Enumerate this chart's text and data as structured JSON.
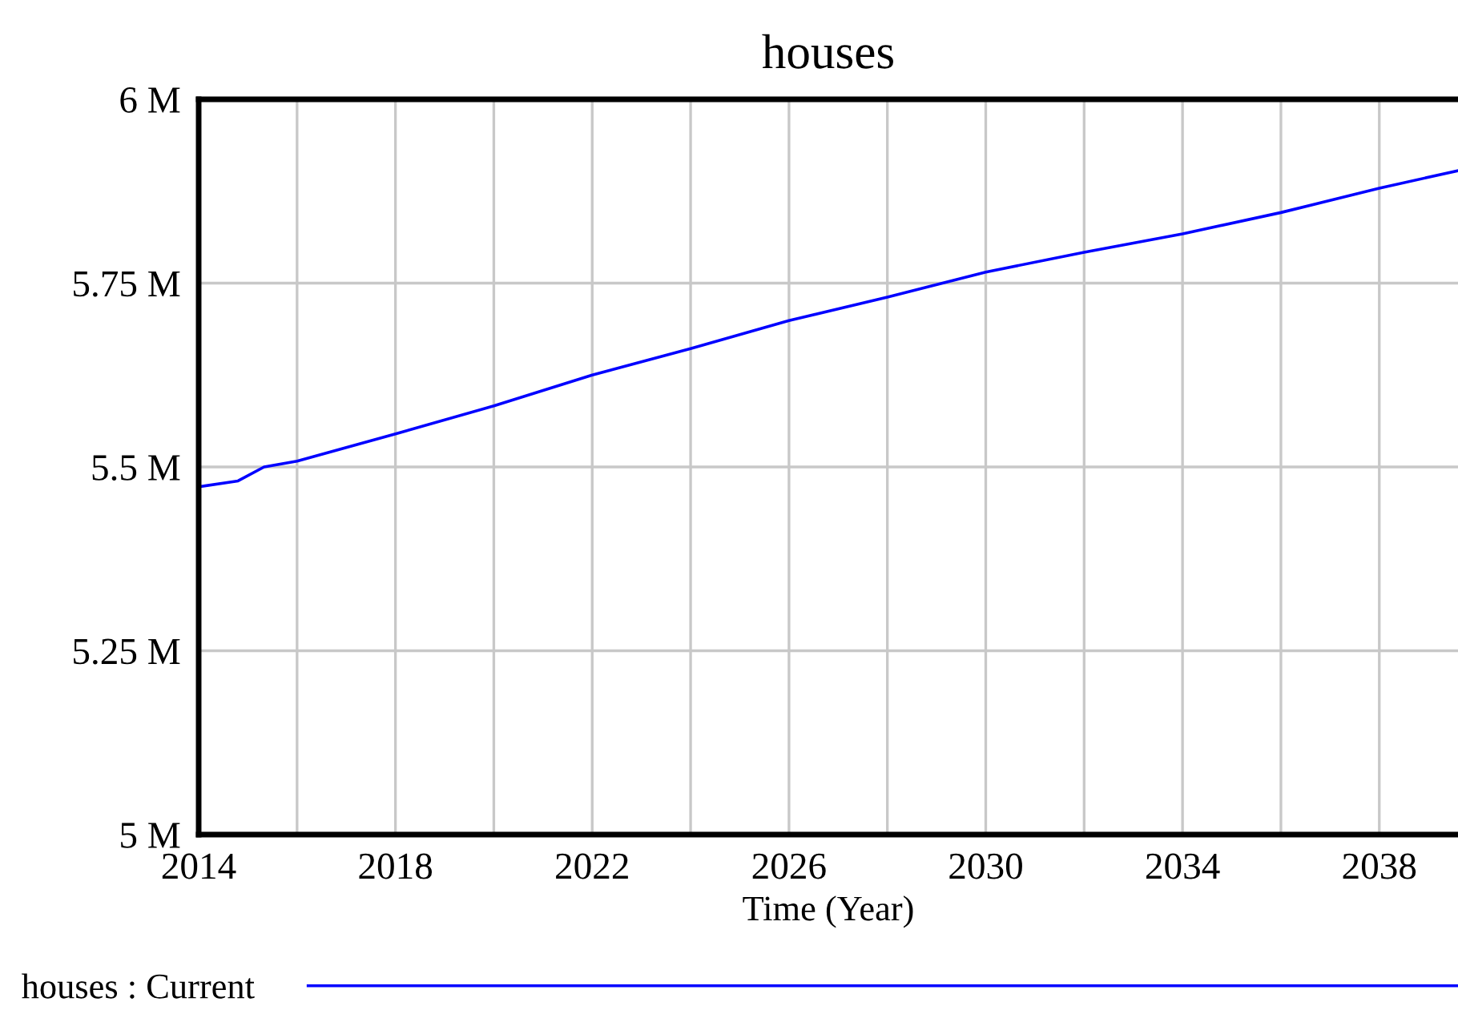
{
  "chart_data": {
    "type": "line",
    "title": "houses",
    "xlabel": "Time (Year)",
    "x": [
      2014,
      2014.8,
      2015.33,
      2016,
      2018,
      2020,
      2022,
      2024,
      2026,
      2028,
      2030,
      2032,
      2034,
      2036,
      2038,
      2039.6
    ],
    "series": [
      {
        "name": "houses : Current",
        "color": "#0000ff",
        "values": [
          5473000,
          5481000,
          5500000,
          5508000,
          5545000,
          5583000,
          5625000,
          5661000,
          5699000,
          5731000,
          5765000,
          5792000,
          5817000,
          5846000,
          5879000,
          5903000
        ]
      }
    ],
    "xlim": [
      2014,
      2039.6
    ],
    "xticks": [
      2014,
      {
        "value": 2016,
        "label": null
      },
      2018,
      {
        "value": 2020,
        "label": null
      },
      2022,
      {
        "value": 2024,
        "label": null
      },
      2026,
      {
        "value": 2028,
        "label": null
      },
      2030,
      {
        "value": 2032,
        "label": null
      },
      2034,
      {
        "value": 2036,
        "label": null
      },
      2038
    ],
    "ylim": [
      5000000,
      6000000
    ],
    "yticks": [
      {
        "value": 5000000,
        "label": "5 M"
      },
      {
        "value": 5250000,
        "label": "5.25 M"
      },
      {
        "value": 5500000,
        "label": "5.5 M"
      },
      {
        "value": 5750000,
        "label": "5.75 M"
      },
      {
        "value": 6000000,
        "label": "6 M"
      }
    ],
    "grid": true,
    "legend": "bottom",
    "marker": "none",
    "line_style": "solid"
  }
}
